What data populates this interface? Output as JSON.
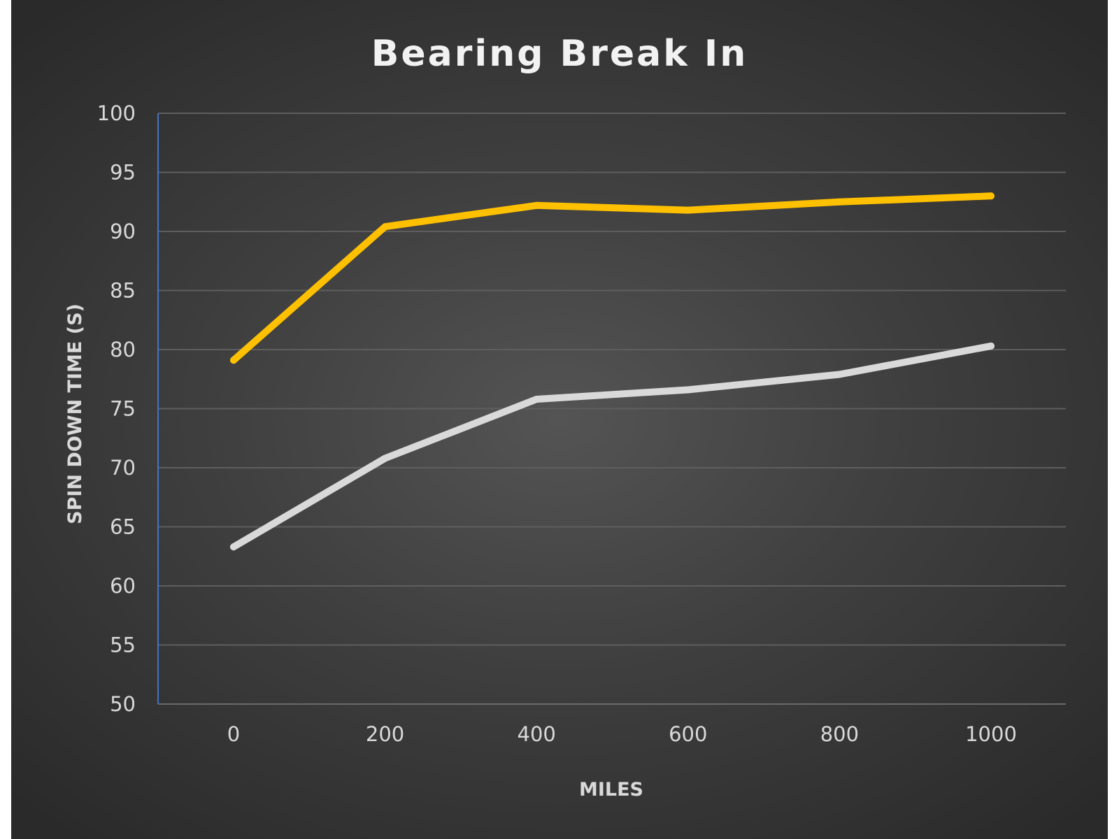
{
  "chart_data": {
    "type": "line",
    "title": "Bearing Break In",
    "xlabel": "MILES",
    "ylabel": "SPIN DOWN TIME (S)",
    "x": [
      0,
      200,
      400,
      600,
      800,
      1000
    ],
    "x_tick_labels": [
      "0",
      "200",
      "400",
      "600",
      "800",
      "1000"
    ],
    "ylim": [
      50,
      100
    ],
    "y_ticks": [
      50,
      55,
      60,
      65,
      70,
      75,
      80,
      85,
      90,
      95,
      100
    ],
    "grid": true,
    "legend": "none",
    "series": [
      {
        "color": "#ffc000",
        "values": [
          79.1,
          90.4,
          92.2,
          91.8,
          92.5,
          93.0
        ]
      },
      {
        "color": "#d9d9d9",
        "values": [
          63.3,
          70.8,
          75.8,
          76.6,
          77.9,
          80.3
        ]
      }
    ]
  }
}
